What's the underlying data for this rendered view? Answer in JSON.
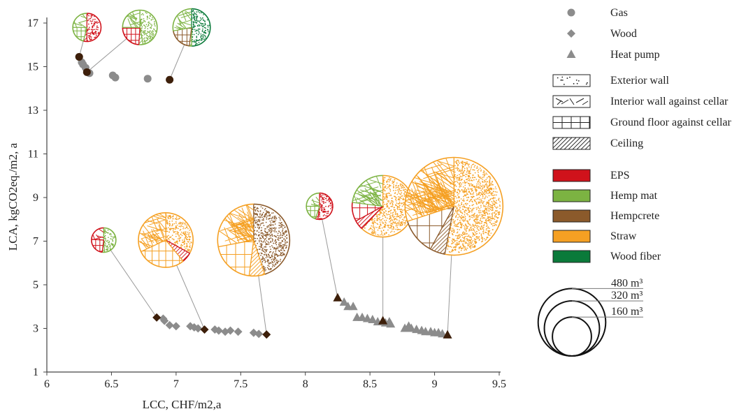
{
  "chart_data": {
    "type": "scatter",
    "xlabel": "LCC, CHF/m2,a",
    "ylabel": "LCA, kgCO2eq./m2, a",
    "xlim": [
      6,
      9.5
    ],
    "ylim": [
      1,
      17
    ],
    "x_ticks": [
      "6",
      "6.5",
      "7",
      "7.5",
      "8",
      "8.5",
      "9",
      "9.5"
    ],
    "y_ticks": [
      "1",
      "3",
      "5",
      "7",
      "9",
      "11",
      "13",
      "15",
      "17"
    ],
    "grid": false,
    "legend_position": "right",
    "colors": {
      "marker": "#8c8c8c",
      "highlight": "#3d1f0a",
      "leader": "#999999",
      "EPS": "#d0121b",
      "Hemp mat": "#7cb342",
      "Hempcrete": "#8b5a2b",
      "Straw": "#f5a023",
      "Wood fiber": "#0a7a3a"
    },
    "series": [
      {
        "name": "Gas",
        "marker": "circle",
        "points": [
          [
            6.25,
            15.45
          ],
          [
            6.27,
            15.2
          ],
          [
            6.28,
            15.1
          ],
          [
            6.3,
            14.95
          ],
          [
            6.33,
            14.7
          ],
          [
            6.51,
            14.6
          ],
          [
            6.53,
            14.5
          ],
          [
            6.78,
            14.45
          ]
        ],
        "highlighted": [
          [
            6.25,
            15.45
          ],
          [
            6.31,
            14.75
          ],
          [
            6.95,
            14.4
          ]
        ]
      },
      {
        "name": "Wood",
        "marker": "diamond",
        "points": [
          [
            6.9,
            3.45
          ],
          [
            6.91,
            3.35
          ],
          [
            6.95,
            3.15
          ],
          [
            7.0,
            3.1
          ],
          [
            7.11,
            3.1
          ],
          [
            7.14,
            3.05
          ],
          [
            7.17,
            3.0
          ],
          [
            7.3,
            2.95
          ],
          [
            7.33,
            2.9
          ],
          [
            7.38,
            2.85
          ],
          [
            7.42,
            2.9
          ],
          [
            7.48,
            2.85
          ],
          [
            7.6,
            2.8
          ],
          [
            7.64,
            2.75
          ]
        ],
        "highlighted": [
          [
            6.85,
            3.5
          ],
          [
            7.22,
            2.95
          ],
          [
            7.7,
            2.72
          ]
        ]
      },
      {
        "name": "Heat pump",
        "marker": "triangle",
        "points": [
          [
            8.3,
            4.2
          ],
          [
            8.33,
            4.0
          ],
          [
            8.37,
            4.0
          ],
          [
            8.4,
            3.5
          ],
          [
            8.44,
            3.5
          ],
          [
            8.48,
            3.45
          ],
          [
            8.52,
            3.4
          ],
          [
            8.56,
            3.3
          ],
          [
            8.62,
            3.25
          ],
          [
            8.65,
            3.3
          ],
          [
            8.66,
            3.2
          ],
          [
            8.77,
            3.0
          ],
          [
            8.8,
            3.1
          ],
          [
            8.82,
            3.0
          ],
          [
            8.86,
            2.95
          ],
          [
            8.9,
            2.9
          ],
          [
            8.93,
            2.85
          ],
          [
            8.97,
            2.85
          ],
          [
            9.0,
            2.8
          ],
          [
            9.03,
            2.8
          ],
          [
            9.06,
            2.75
          ]
        ],
        "highlighted": [
          [
            8.25,
            4.4
          ],
          [
            8.6,
            3.35
          ],
          [
            9.1,
            2.7
          ]
        ]
      }
    ],
    "insulation_pies": [
      {
        "series": "Gas",
        "point": [
          6.25,
          15.45
        ],
        "volume_m3": 40,
        "slices": [
          {
            "element": "Exterior wall",
            "material": "EPS",
            "fraction": 0.5
          },
          {
            "element": "Ceiling",
            "material": "EPS",
            "fraction": 0.04
          },
          {
            "element": "Ground floor against cellar",
            "material": "Hemp mat",
            "fraction": 0.21
          },
          {
            "element": "Interior wall against cellar",
            "material": "Hemp mat",
            "fraction": 0.25
          }
        ]
      },
      {
        "series": "Gas",
        "point": [
          6.31,
          14.75
        ],
        "volume_m3": 60,
        "slices": [
          {
            "element": "Exterior wall",
            "material": "Hemp mat",
            "fraction": 0.47
          },
          {
            "element": "Ceiling",
            "material": "Hemp mat",
            "fraction": 0.04
          },
          {
            "element": "Ground floor against cellar",
            "material": "EPS",
            "fraction": 0.24
          },
          {
            "element": "Interior wall against cellar",
            "material": "Hemp mat",
            "fraction": 0.25
          }
        ]
      },
      {
        "series": "Gas",
        "point": [
          6.95,
          14.4
        ],
        "volume_m3": 70,
        "slices": [
          {
            "element": "Exterior wall",
            "material": "Wood fiber",
            "fraction": 0.5
          },
          {
            "element": "Ceiling",
            "material": "Hemp mat",
            "fraction": 0.02
          },
          {
            "element": "Ground floor against cellar",
            "material": "Hempcrete",
            "fraction": 0.2
          },
          {
            "element": "Interior wall against cellar",
            "material": "Hemp mat",
            "fraction": 0.28
          }
        ]
      },
      {
        "series": "Wood",
        "point": [
          6.85,
          3.5
        ],
        "volume_m3": 30,
        "slices": [
          {
            "element": "Exterior wall",
            "material": "Hemp mat",
            "fraction": 0.49
          },
          {
            "element": "Ceiling",
            "material": "Hemp mat",
            "fraction": 0.03
          },
          {
            "element": "Ground floor against cellar",
            "material": "EPS",
            "fraction": 0.24
          },
          {
            "element": "Interior wall against cellar",
            "material": "EPS",
            "fraction": 0.24
          }
        ]
      },
      {
        "series": "Wood",
        "point": [
          7.22,
          2.95
        ],
        "volume_m3": 150,
        "slices": [
          {
            "element": "Exterior wall",
            "material": "Straw",
            "fraction": 0.33
          },
          {
            "element": "Ceiling",
            "material": "EPS",
            "fraction": 0.06
          },
          {
            "element": "Ground floor against cellar",
            "material": "Straw",
            "fraction": 0.29
          },
          {
            "element": "Interior wall against cellar",
            "material": "Straw",
            "fraction": 0.32
          }
        ]
      },
      {
        "series": "Wood",
        "point": [
          7.7,
          2.72
        ],
        "volume_m3": 260,
        "slices": [
          {
            "element": "Exterior wall",
            "material": "Hempcrete",
            "fraction": 0.45
          },
          {
            "element": "Ceiling",
            "material": "Straw",
            "fraction": 0.07
          },
          {
            "element": "Ground floor against cellar",
            "material": "Straw",
            "fraction": 0.2
          },
          {
            "element": "Interior wall against cellar",
            "material": "Straw",
            "fraction": 0.28
          }
        ]
      },
      {
        "series": "Heat pump",
        "point": [
          8.25,
          4.4
        ],
        "volume_m3": 35,
        "slices": [
          {
            "element": "Exterior wall",
            "material": "EPS",
            "fraction": 0.52
          },
          {
            "element": "Ceiling",
            "material": "EPS",
            "fraction": 0.03
          },
          {
            "element": "Ground floor against cellar",
            "material": "Hemp mat",
            "fraction": 0.2
          },
          {
            "element": "Interior wall against cellar",
            "material": "Hemp mat",
            "fraction": 0.25
          }
        ]
      },
      {
        "series": "Heat pump",
        "point": [
          8.6,
          3.35
        ],
        "volume_m3": 190,
        "slices": [
          {
            "element": "Exterior wall",
            "material": "Straw",
            "fraction": 0.62
          },
          {
            "element": "Ceiling",
            "material": "EPS",
            "fraction": 0.05
          },
          {
            "element": "Ground floor against cellar",
            "material": "EPS",
            "fraction": 0.1
          },
          {
            "element": "Interior wall against cellar",
            "material": "Hemp mat",
            "fraction": 0.23
          }
        ]
      },
      {
        "series": "Heat pump",
        "point": [
          9.1,
          2.7
        ],
        "volume_m3": 480,
        "slices": [
          {
            "element": "Exterior wall",
            "material": "Straw",
            "fraction": 0.53
          },
          {
            "element": "Ceiling",
            "material": "Hempcrete",
            "fraction": 0.05
          },
          {
            "element": "Ground floor against cellar",
            "material": "Hempcrete",
            "fraction": 0.12
          },
          {
            "element": "Interior wall against cellar",
            "material": "Straw",
            "fraction": 0.3
          }
        ]
      }
    ]
  },
  "legend": {
    "markers": [
      {
        "label": "Gas",
        "shape": "circle"
      },
      {
        "label": "Wood",
        "shape": "diamond"
      },
      {
        "label": "Heat pump",
        "shape": "triangle"
      }
    ],
    "elements": [
      {
        "label": "Exterior wall",
        "pattern": "dots"
      },
      {
        "label": "Interior wall against cellar",
        "pattern": "random-lines"
      },
      {
        "label": "Ground floor against cellar",
        "pattern": "grid"
      },
      {
        "label": "Ceiling",
        "pattern": "diagonal"
      }
    ],
    "materials": [
      {
        "label": "EPS",
        "color": "#d0121b"
      },
      {
        "label": "Hemp mat",
        "color": "#7cb342"
      },
      {
        "label": "Hempcrete",
        "color": "#8b5a2b"
      },
      {
        "label": "Straw",
        "color": "#f5a023"
      },
      {
        "label": "Wood fiber",
        "color": "#0a7a3a"
      }
    ],
    "sizes": [
      {
        "label": "480 m³",
        "value": 480
      },
      {
        "label": "320 m³",
        "value": 320
      },
      {
        "label": "160 m³",
        "value": 160
      }
    ]
  }
}
